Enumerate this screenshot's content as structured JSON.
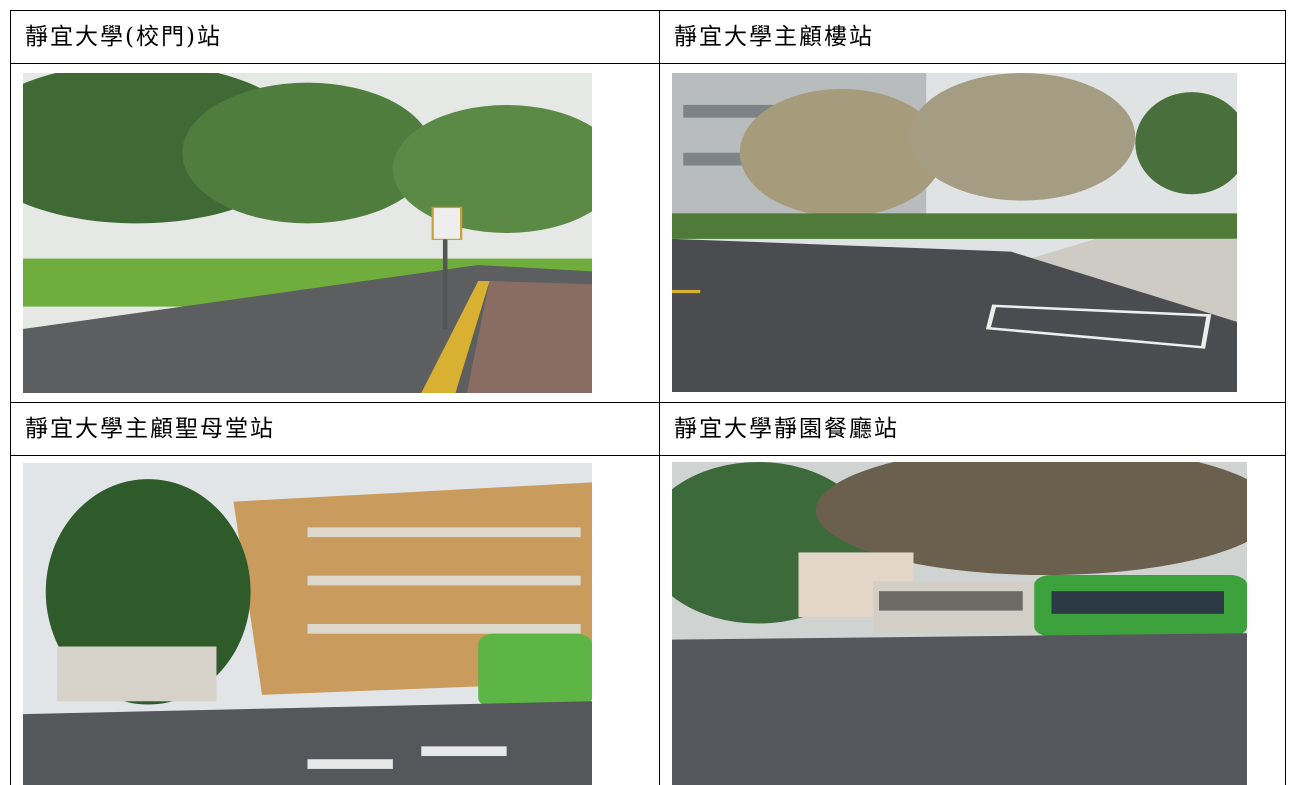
{
  "table": {
    "cells": [
      {
        "title": "靜宜大學(校門)站"
      },
      {
        "title": "靜宜大學主顧樓站"
      },
      {
        "title": "靜宜大學主顧聖母堂站"
      },
      {
        "title": "靜宜大學靜園餐廳站"
      }
    ]
  }
}
